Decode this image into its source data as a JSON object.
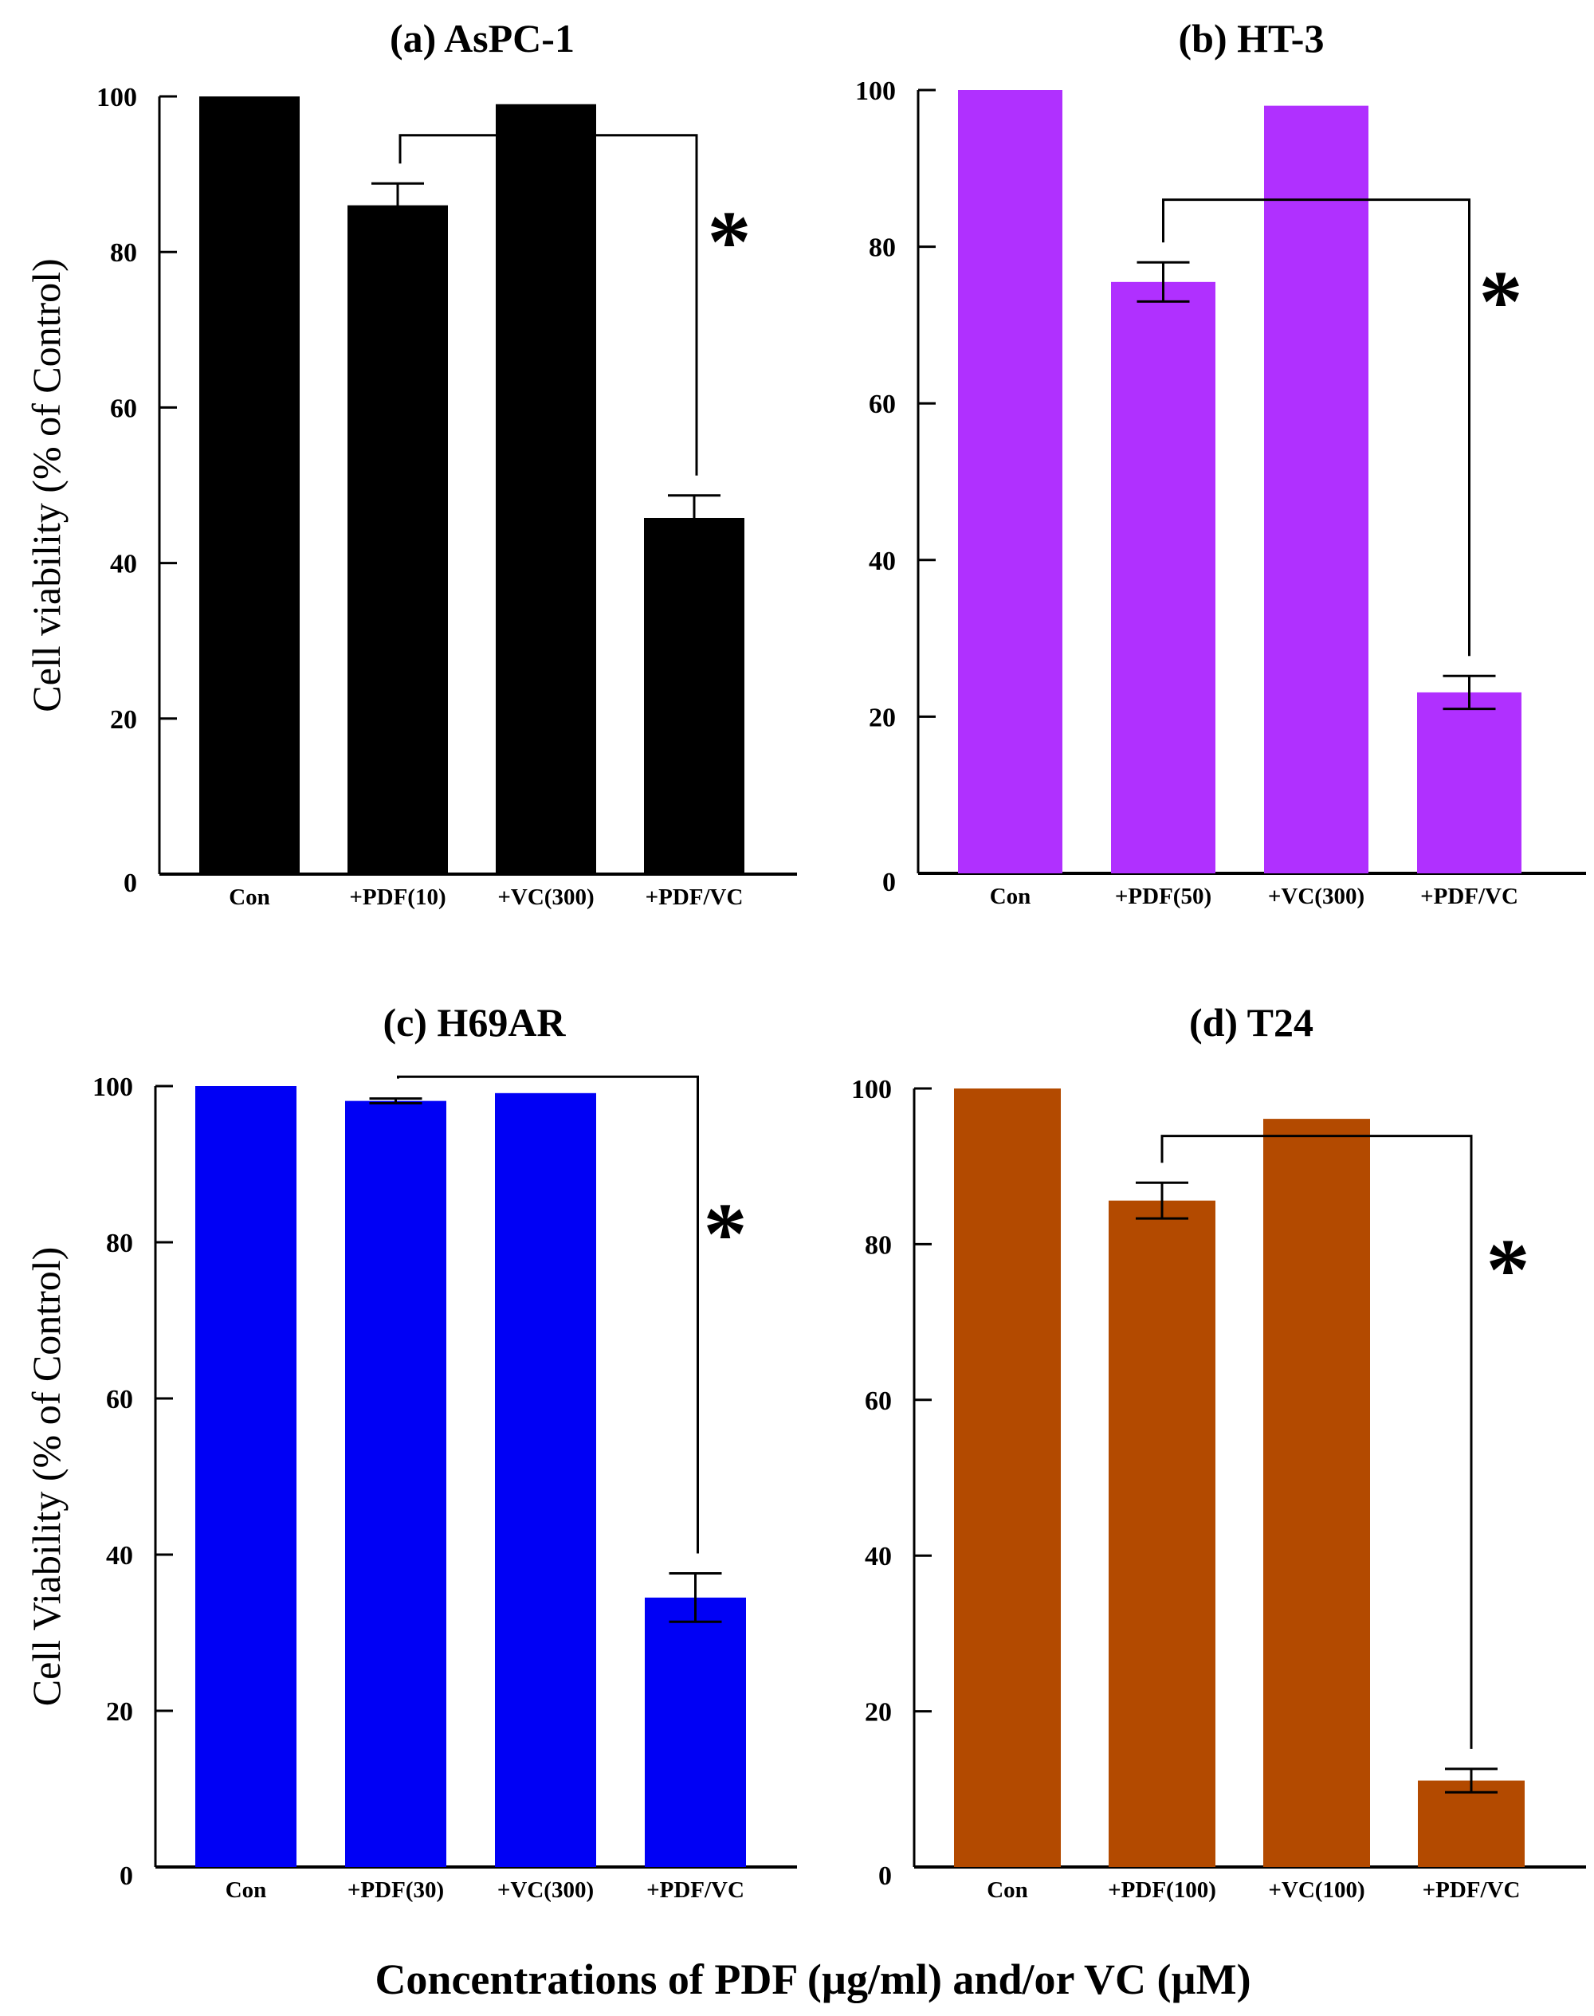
{
  "figure": {
    "xlabel": "Concentrations of PDF (µg/ml) and/or VC (µM)"
  },
  "chart_data": [
    {
      "type": "bar",
      "title": "(a) AsPC-1",
      "ylabel": "Cell viability (% of Control)",
      "xlabel": "",
      "ylim": [
        0,
        100
      ],
      "yticks": [
        0,
        20,
        40,
        60,
        80,
        100
      ],
      "categories": [
        "Con",
        "+PDF(10)",
        "+VC(300)",
        "+PDF/VC"
      ],
      "values": [
        100,
        86,
        99,
        45.8
      ],
      "error": [
        0,
        2.8,
        0,
        2.9
      ],
      "color": "#000000",
      "significance": {
        "from": 1,
        "to": 3,
        "label": "*",
        "level": 95
      }
    },
    {
      "type": "bar",
      "title": "(b) HT-3",
      "ylabel": "",
      "xlabel": "",
      "ylim": [
        0,
        100
      ],
      "yticks": [
        0,
        20,
        40,
        60,
        80,
        100
      ],
      "categories": [
        "Con",
        "+PDF(50)",
        "+VC(300)",
        "+PDF/VC"
      ],
      "values": [
        100,
        75.5,
        98,
        23.1
      ],
      "error": [
        0,
        2.5,
        0,
        2.1
      ],
      "color": "#b030ff",
      "significance": {
        "from": 1,
        "to": 3,
        "label": "*",
        "level": 86
      }
    },
    {
      "type": "bar",
      "title": "(c) H69AR",
      "ylabel": "Cell Viability (% of Control)",
      "xlabel": "",
      "ylim": [
        0,
        100
      ],
      "yticks": [
        0,
        20,
        40,
        60,
        80,
        100
      ],
      "categories": [
        "Con",
        "+PDF(30)",
        "+VC(300)",
        "+PDF/VC"
      ],
      "values": [
        100,
        98.1,
        99.1,
        34.5
      ],
      "error": [
        0,
        0.3,
        0,
        3.1
      ],
      "color": "#0000f5",
      "significance": {
        "from": 1,
        "to": 3,
        "label": "*",
        "level": 101.2
      }
    },
    {
      "type": "bar",
      "title": "(d) T24",
      "ylabel": "",
      "xlabel": "",
      "ylim": [
        0,
        100
      ],
      "yticks": [
        0,
        20,
        40,
        60,
        80,
        100
      ],
      "categories": [
        "Con",
        "+PDF(100)",
        "+VC(100)",
        "+PDF/VC"
      ],
      "values": [
        100,
        85.6,
        96.1,
        11.1
      ],
      "error": [
        0,
        2.3,
        0,
        1.5
      ],
      "color": "#b34a00",
      "significance": {
        "from": 1,
        "to": 3,
        "label": "*",
        "level": 93.9
      }
    }
  ]
}
